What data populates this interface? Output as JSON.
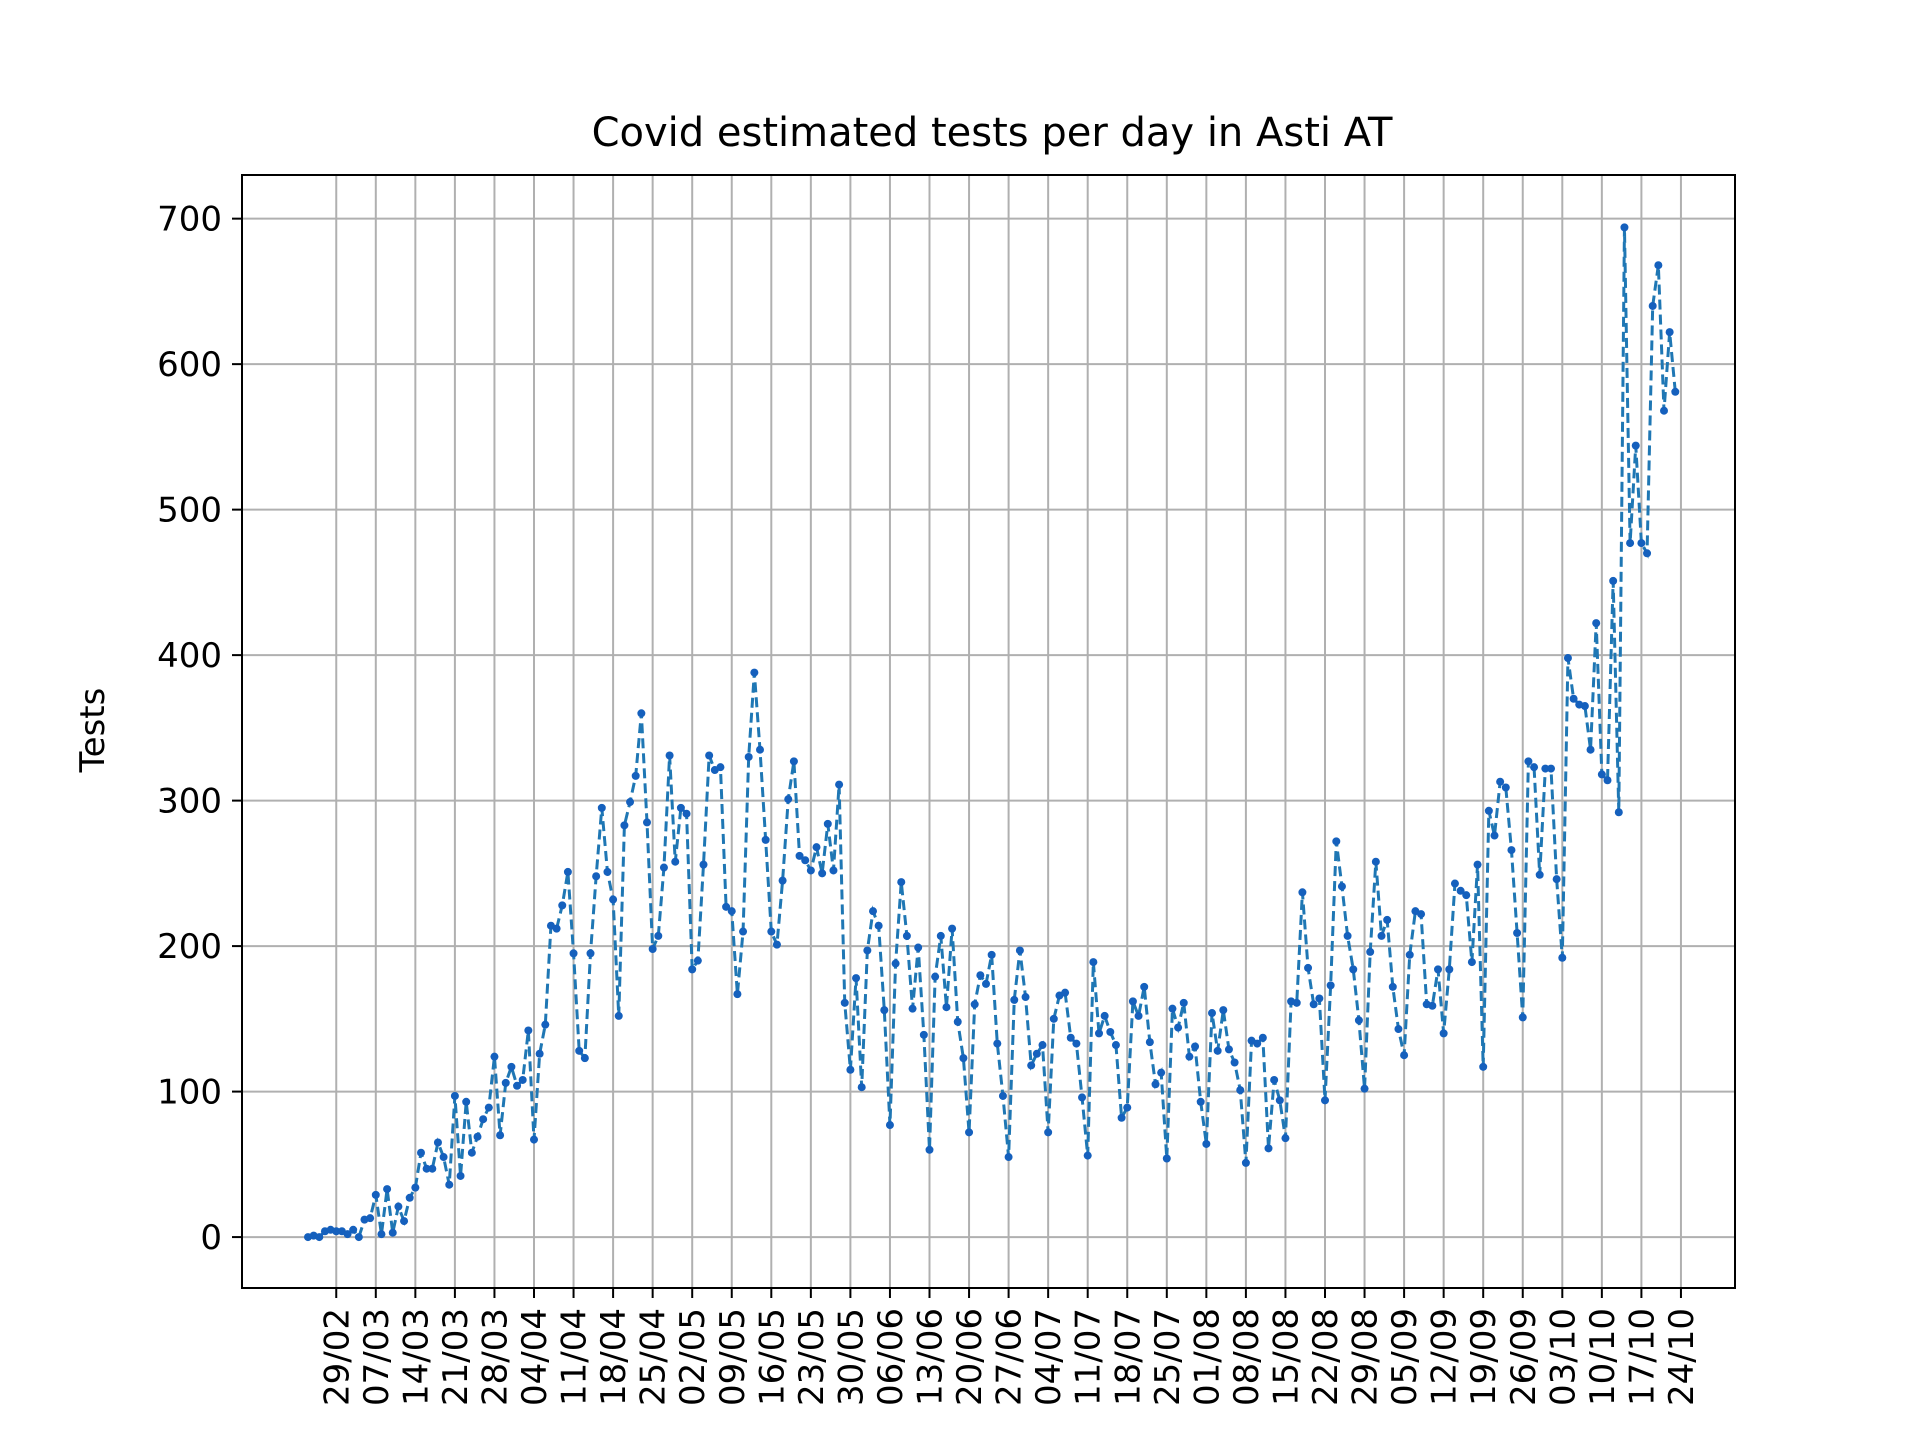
{
  "chart_data": {
    "type": "line",
    "title": "Covid estimated tests per day in Asti AT",
    "xlabel": "",
    "ylabel": "Tests",
    "ylim": [
      -35,
      730
    ],
    "yticks": [
      0,
      100,
      200,
      300,
      400,
      500,
      600,
      700
    ],
    "grid": true,
    "line_color": "#1f77b4",
    "marker_color": "#1560bd",
    "line_style": "dashed",
    "x_start": "2020-02-24",
    "x_end": "2020-10-24",
    "xticks": [
      "29/02",
      "07/03",
      "14/03",
      "21/03",
      "28/03",
      "04/04",
      "11/04",
      "18/04",
      "25/04",
      "02/05",
      "09/05",
      "16/05",
      "23/05",
      "30/05",
      "06/06",
      "13/06",
      "20/06",
      "27/06",
      "04/07",
      "11/07",
      "18/07",
      "25/07",
      "01/08",
      "08/08",
      "15/08",
      "22/08",
      "29/08",
      "05/09",
      "12/09",
      "19/09",
      "26/09",
      "03/10",
      "10/10",
      "17/10",
      "24/10"
    ],
    "series": [
      {
        "values": [
          0,
          1,
          0,
          4,
          5,
          4,
          4,
          2,
          5,
          0,
          12,
          13,
          29,
          2,
          33,
          3,
          21,
          11,
          27,
          34,
          58,
          47,
          47,
          65,
          55,
          36,
          97,
          42,
          93,
          58,
          69,
          81,
          89,
          124,
          70,
          106,
          117,
          104,
          108,
          142,
          67,
          126,
          146,
          214,
          212,
          228,
          251,
          195,
          128,
          123,
          195,
          248,
          295,
          251,
          232,
          152,
          283,
          299,
          317,
          360,
          285,
          198,
          207,
          254,
          331,
          258,
          295,
          291,
          184,
          190,
          256,
          331,
          321,
          323,
          227,
          224,
          167,
          210,
          330,
          388,
          335,
          273,
          210,
          201,
          245,
          301,
          327,
          262,
          259,
          252,
          268,
          250,
          284,
          252,
          311,
          161,
          115,
          178,
          103,
          197,
          224,
          214,
          156,
          77,
          188,
          244,
          207,
          157,
          199,
          139,
          60,
          179,
          207,
          158,
          212,
          148,
          123,
          72,
          160,
          180,
          174,
          194,
          133,
          97,
          55,
          163,
          197,
          165,
          118,
          126,
          132,
          72,
          150,
          166,
          168,
          137,
          133,
          96,
          56,
          189,
          140,
          152,
          141,
          132,
          82,
          89,
          162,
          152,
          172,
          134,
          105,
          113,
          54,
          157,
          144,
          161,
          124,
          131,
          93,
          64,
          154,
          128,
          156,
          129,
          120,
          101,
          51,
          135,
          133,
          137,
          61,
          108,
          94,
          68,
          162,
          161,
          237,
          185,
          160,
          164,
          94,
          173,
          272,
          241,
          207,
          184,
          149,
          102,
          196,
          258,
          207,
          218,
          172,
          143,
          125,
          194,
          224,
          222,
          160,
          159,
          184,
          140,
          184,
          243,
          238,
          235,
          189,
          256,
          117,
          293,
          276,
          313,
          309,
          266,
          209,
          151,
          327,
          323,
          249,
          322,
          322,
          246,
          192,
          398,
          370,
          366,
          365,
          335,
          422,
          318,
          314,
          451,
          292,
          694,
          477,
          544,
          477,
          470,
          640,
          668,
          568,
          622,
          581
        ]
      }
    ]
  }
}
